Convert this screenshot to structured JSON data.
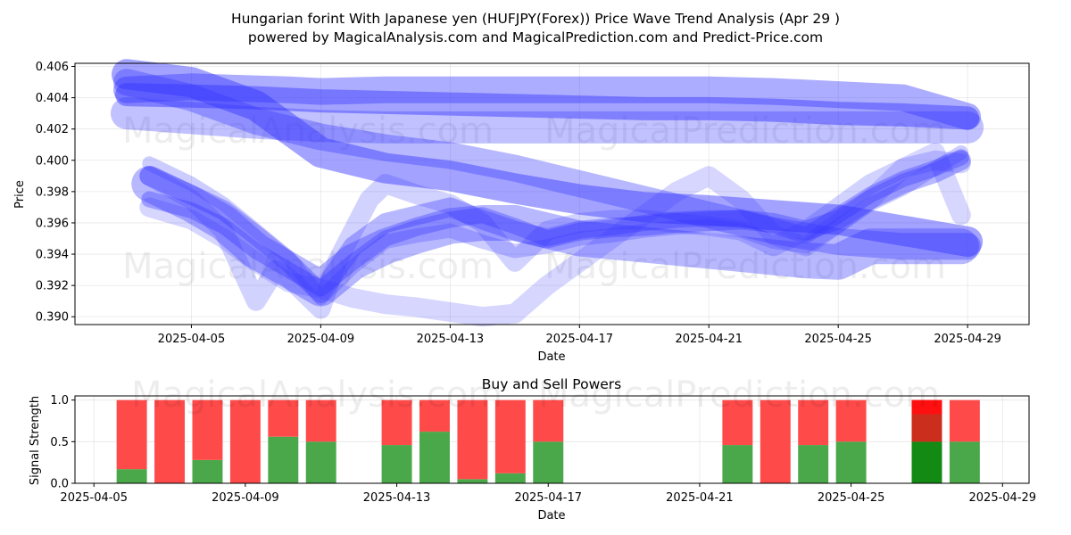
{
  "title_line1": "Hungarian forint With Japanese yen (HUFJPY(Forex)) Price Wave Trend Analysis (Apr 29 )",
  "title_line2": "powered by MagicalAnalysis.com and MagicalPrediction.com and Predict-Price.com",
  "watermarks": [
    "MagicalAnalysis.com",
    "MagicalPrediction.com"
  ],
  "chart_data": [
    {
      "type": "line",
      "title": "",
      "xlabel": "Date",
      "ylabel": "Price",
      "ylim": [
        0.3895,
        0.4062
      ],
      "xlim_days": [
        -3.6,
        25.9
      ],
      "x_ticks": [
        "2025-04-05",
        "2025-04-09",
        "2025-04-13",
        "2025-04-17",
        "2025-04-21",
        "2025-04-25",
        "2025-04-29"
      ],
      "x_tick_days": [
        0,
        4,
        8,
        12,
        16,
        20,
        24
      ],
      "y_ticks": [
        "0.390",
        "0.392",
        "0.394",
        "0.396",
        "0.398",
        "0.400",
        "0.402",
        "0.404",
        "0.406"
      ],
      "y_tick_values": [
        0.39,
        0.392,
        0.394,
        0.396,
        0.398,
        0.4,
        0.402,
        0.404,
        0.406
      ],
      "grid": true,
      "series": [
        {
          "name": "wave-top-a",
          "width": 30,
          "opacity": 0.4,
          "x": [
            -2,
            0,
            3,
            4,
            6,
            8,
            10,
            12,
            14,
            16,
            18,
            20,
            22,
            24
          ],
          "y": [
            0.4045,
            0.4047,
            0.4045,
            0.4044,
            0.4045,
            0.4045,
            0.4045,
            0.4045,
            0.4045,
            0.4045,
            0.4044,
            0.4042,
            0.404,
            0.4028
          ]
        },
        {
          "name": "wave-top-b",
          "width": 26,
          "opacity": 0.45,
          "x": [
            -2,
            0,
            2,
            4,
            6,
            8,
            10,
            12,
            14,
            16,
            18,
            20,
            22,
            24
          ],
          "y": [
            0.4042,
            0.4041,
            0.404,
            0.4038,
            0.4037,
            0.4036,
            0.4035,
            0.4034,
            0.4033,
            0.4033,
            0.4032,
            0.403,
            0.4029,
            0.4027
          ]
        },
        {
          "name": "wave-top-c",
          "width": 36,
          "opacity": 0.3,
          "x": [
            -2,
            0,
            2,
            4,
            6,
            8,
            10,
            12,
            14,
            16,
            18,
            20,
            22,
            24
          ],
          "y": [
            0.403,
            0.4027,
            0.4024,
            0.4022,
            0.4021,
            0.4021,
            0.4021,
            0.4021,
            0.4021,
            0.4021,
            0.4021,
            0.4021,
            0.4021,
            0.4021
          ]
        },
        {
          "name": "wave-descend-a",
          "width": 34,
          "opacity": 0.45,
          "x": [
            -2,
            0,
            2,
            3,
            4,
            6,
            8,
            10,
            12,
            14,
            16,
            18,
            20,
            22,
            24
          ],
          "y": [
            0.4055,
            0.405,
            0.4035,
            0.402,
            0.4005,
            0.3995,
            0.399,
            0.3982,
            0.3975,
            0.397,
            0.3968,
            0.3965,
            0.3962,
            0.3955,
            0.3948
          ]
        },
        {
          "name": "wave-descend-b",
          "width": 30,
          "opacity": 0.35,
          "x": [
            -2,
            0,
            2,
            4,
            6,
            8,
            10,
            12,
            14,
            16,
            18,
            20,
            22,
            24
          ],
          "y": [
            0.405,
            0.404,
            0.4025,
            0.4015,
            0.4008,
            0.4003,
            0.3995,
            0.3985,
            0.3975,
            0.3965,
            0.3955,
            0.3948,
            0.3945,
            0.3945
          ]
        },
        {
          "name": "wave-low-a",
          "width": 22,
          "opacity": 0.35,
          "x": [
            -1.3,
            0,
            1,
            2,
            3,
            4,
            5,
            6,
            7,
            8,
            9,
            10,
            11,
            12,
            13,
            14,
            15,
            16,
            17,
            18,
            19,
            20,
            21,
            22,
            23,
            23.8
          ],
          "y": [
            0.399,
            0.3978,
            0.3968,
            0.3952,
            0.3935,
            0.3915,
            0.3945,
            0.396,
            0.3965,
            0.397,
            0.3962,
            0.3955,
            0.395,
            0.3955,
            0.3957,
            0.3958,
            0.396,
            0.3961,
            0.3962,
            0.396,
            0.3955,
            0.3962,
            0.3975,
            0.3985,
            0.3992,
            0.4
          ]
        },
        {
          "name": "wave-low-b",
          "width": 18,
          "opacity": 0.35,
          "x": [
            -1.3,
            0,
            1,
            2,
            3,
            4,
            5,
            6,
            7,
            8,
            9,
            10,
            11,
            12,
            13,
            14,
            15,
            16,
            17,
            18,
            19,
            20,
            21,
            22,
            23,
            23.8
          ],
          "y": [
            0.3975,
            0.3968,
            0.3958,
            0.3942,
            0.393,
            0.3918,
            0.3935,
            0.395,
            0.3957,
            0.3962,
            0.3965,
            0.3958,
            0.395,
            0.3955,
            0.3957,
            0.396,
            0.3962,
            0.3963,
            0.3963,
            0.3958,
            0.3952,
            0.3965,
            0.3978,
            0.3988,
            0.3995,
            0.4002
          ]
        },
        {
          "name": "wave-low-c",
          "width": 16,
          "opacity": 0.25,
          "x": [
            -1.3,
            0,
            1,
            2,
            3,
            4,
            5,
            6,
            7,
            8,
            9,
            10,
            11,
            12,
            13,
            14,
            15,
            16,
            17,
            18,
            19,
            20,
            21,
            22,
            23,
            23.8
          ],
          "y": [
            0.3998,
            0.3985,
            0.3972,
            0.3955,
            0.3938,
            0.3912,
            0.3932,
            0.3948,
            0.3952,
            0.3955,
            0.3948,
            0.3942,
            0.3945,
            0.395,
            0.3952,
            0.3955,
            0.3957,
            0.3958,
            0.3955,
            0.3948,
            0.3945,
            0.3958,
            0.3972,
            0.3982,
            0.3995,
            0.4005
          ]
        },
        {
          "name": "wave-drift-a",
          "width": 22,
          "opacity": 0.2,
          "x": [
            -1.3,
            0,
            1,
            2,
            3,
            4,
            5,
            6,
            7,
            8,
            9,
            10,
            11,
            12,
            13,
            14,
            15,
            16,
            17,
            18,
            19,
            20,
            21,
            22,
            23,
            23.8
          ],
          "y": [
            0.397,
            0.3962,
            0.395,
            0.3935,
            0.3922,
            0.3918,
            0.3912,
            0.3908,
            0.3906,
            0.3903,
            0.39,
            0.3902,
            0.392,
            0.3935,
            0.395,
            0.3965,
            0.398,
            0.399,
            0.3975,
            0.3952,
            0.3945,
            0.396,
            0.3975,
            0.3995,
            0.4005,
            0.3965
          ]
        },
        {
          "name": "wave-drift-b",
          "width": 22,
          "opacity": 0.22,
          "x": [
            -1.3,
            0,
            1,
            2,
            2.6,
            3,
            4,
            4.5,
            5,
            5.5,
            6,
            7,
            8,
            9,
            10,
            11,
            12,
            13,
            14,
            15,
            16,
            17,
            18,
            19,
            20,
            21,
            22,
            23,
            23.8
          ],
          "y": [
            0.399,
            0.3975,
            0.3955,
            0.391,
            0.393,
            0.3925,
            0.3905,
            0.3935,
            0.3955,
            0.3975,
            0.3985,
            0.3978,
            0.3972,
            0.396,
            0.3935,
            0.3955,
            0.396,
            0.3962,
            0.3962,
            0.396,
            0.3958,
            0.3955,
            0.3945,
            0.3955,
            0.397,
            0.3985,
            0.3995,
            0.4,
            0.3998
          ]
        },
        {
          "name": "wave-settle",
          "width": 40,
          "opacity": 0.35,
          "x": [
            -1.3,
            0,
            1,
            2,
            3,
            4,
            5,
            6,
            7,
            8,
            9,
            10,
            11,
            12,
            13,
            14,
            15,
            16,
            17,
            18,
            19,
            20,
            21,
            22,
            23,
            23.8
          ],
          "y": [
            0.3985,
            0.3972,
            0.396,
            0.3942,
            0.393,
            0.3918,
            0.3935,
            0.3945,
            0.3952,
            0.3958,
            0.396,
            0.396,
            0.3955,
            0.395,
            0.3948,
            0.3946,
            0.3944,
            0.3942,
            0.394,
            0.3938,
            0.3936,
            0.3935,
            0.3945,
            0.3945,
            0.3945,
            0.3945
          ]
        }
      ]
    },
    {
      "type": "bar",
      "title": "Buy and Sell Powers",
      "xlabel": "Date",
      "ylabel": "Signal Strength",
      "ylim": [
        0,
        1.05
      ],
      "xlim_days": [
        -0.5,
        24.7
      ],
      "x_ticks": [
        "2025-04-05",
        "2025-04-09",
        "2025-04-13",
        "2025-04-17",
        "2025-04-21",
        "2025-04-25",
        "2025-04-29"
      ],
      "x_tick_days": [
        0,
        4,
        8,
        12,
        16,
        20,
        24
      ],
      "y_ticks": [
        "0.0",
        "0.5",
        "1.0"
      ],
      "y_tick_values": [
        0,
        0.5,
        1.0
      ],
      "grid": true,
      "legend": "none",
      "categories": [
        "2025-04-06",
        "2025-04-07",
        "2025-04-08",
        "2025-04-09",
        "2025-04-10",
        "2025-04-11",
        "2025-04-13",
        "2025-04-14",
        "2025-04-15",
        "2025-04-16",
        "2025-04-17",
        "2025-04-22",
        "2025-04-23",
        "2025-04-24",
        "2025-04-25",
        "2025-04-27",
        "2025-04-28"
      ],
      "day_offsets": [
        1,
        2,
        3,
        4,
        5,
        6,
        8,
        9,
        10,
        11,
        12,
        17,
        18,
        19,
        20,
        22,
        23
      ],
      "series": [
        {
          "name": "Buy",
          "color": "#4aa84a",
          "values": [
            0.17,
            0.0,
            0.28,
            0.0,
            0.56,
            0.5,
            0.46,
            0.62,
            0.05,
            0.12,
            0.5,
            0.46,
            0.0,
            0.46,
            0.5,
            0.5,
            0.5
          ]
        },
        {
          "name": "Sell",
          "color": "#ff4a4a",
          "values": [
            0.83,
            1.0,
            0.72,
            1.0,
            0.44,
            0.5,
            0.54,
            0.38,
            0.95,
            0.88,
            0.5,
            0.54,
            1.0,
            0.54,
            0.5,
            0.5,
            0.5
          ]
        }
      ],
      "overlays": [
        {
          "day": 22,
          "bottom": 0.0,
          "top": 0.5,
          "color": "#138a13"
        },
        {
          "day": 22,
          "bottom": 0.5,
          "top": 0.83,
          "color": "#cc2e1e"
        },
        {
          "day": 22,
          "bottom": 0.83,
          "top": 1.0,
          "color": "#ff1010"
        }
      ]
    }
  ]
}
